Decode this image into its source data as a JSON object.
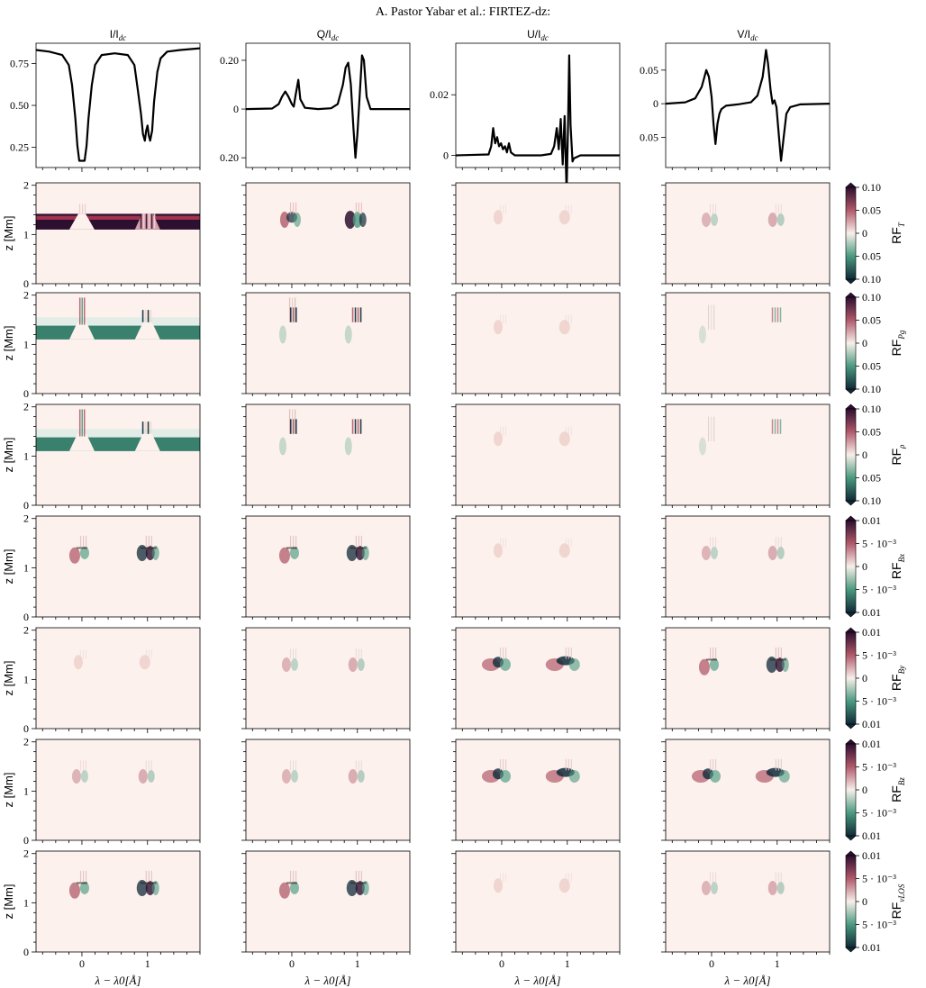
{
  "header": {
    "running_head": "A. Pastor Yabar  et al.: FIRTEZ-dz:"
  },
  "chart_data": {
    "type": "heatmap",
    "layout": {
      "rows": 8,
      "cols": 4
    },
    "columns": [
      {
        "title": "I/I",
        "title_sub": "dc"
      },
      {
        "title": "Q/I",
        "title_sub": "dc"
      },
      {
        "title": "U/I",
        "title_sub": "dc"
      },
      {
        "title": "V/I",
        "title_sub": "dc"
      }
    ],
    "xlabel": "λ − λ0[Å]",
    "xticks": [
      "0",
      "1"
    ],
    "xlim": [
      -0.7,
      1.8
    ],
    "ylabel": "z [Mm]",
    "yticks": [
      "0",
      "1",
      "2"
    ],
    "ylim": [
      0,
      2.05
    ],
    "profiles": [
      {
        "stokes": "I",
        "ylim": [
          0.13,
          0.87
        ],
        "yticks": [
          {
            "v": 0.25,
            "t": "0.25"
          },
          {
            "v": 0.5,
            "t": "0.50"
          },
          {
            "v": 0.75,
            "t": "0.75"
          }
        ],
        "x": [
          -0.7,
          -0.5,
          -0.3,
          -0.2,
          -0.15,
          -0.1,
          -0.07,
          -0.04,
          0,
          0.04,
          0.07,
          0.1,
          0.15,
          0.2,
          0.3,
          0.5,
          0.7,
          0.8,
          0.85,
          0.9,
          0.93,
          0.96,
          0.98,
          1.0,
          1.02,
          1.04,
          1.07,
          1.1,
          1.15,
          1.2,
          1.3,
          1.5,
          1.8
        ],
        "y": [
          0.83,
          0.82,
          0.8,
          0.74,
          0.62,
          0.42,
          0.26,
          0.17,
          0.17,
          0.17,
          0.26,
          0.42,
          0.62,
          0.74,
          0.8,
          0.81,
          0.8,
          0.74,
          0.6,
          0.45,
          0.33,
          0.29,
          0.35,
          0.38,
          0.32,
          0.29,
          0.35,
          0.52,
          0.7,
          0.78,
          0.82,
          0.83,
          0.84
        ]
      },
      {
        "stokes": "Q",
        "ylim": [
          -0.24,
          0.27
        ],
        "yticks": [
          {
            "v": -0.2,
            "t": "0.20"
          },
          {
            "v": 0,
            "t": "0"
          },
          {
            "v": 0.2,
            "t": "0.20"
          }
        ],
        "x": [
          -0.7,
          -0.3,
          -0.2,
          -0.15,
          -0.1,
          -0.05,
          0,
          0.03,
          0.06,
          0.1,
          0.13,
          0.2,
          0.4,
          0.6,
          0.7,
          0.78,
          0.82,
          0.86,
          0.9,
          0.94,
          0.97,
          1.0,
          1.04,
          1.07,
          1.1,
          1.14,
          1.2,
          1.3,
          1.8
        ],
        "y": [
          0,
          0.002,
          0.02,
          0.05,
          0.072,
          0.05,
          0.02,
          0.01,
          0.06,
          0.12,
          0.04,
          0.005,
          0,
          0.003,
          0.02,
          0.1,
          0.17,
          0.19,
          0.1,
          -0.08,
          -0.2,
          -0.1,
          0.08,
          0.22,
          0.2,
          0.05,
          0.0,
          0,
          0
        ]
      },
      {
        "stokes": "U",
        "ylim": [
          -0.004,
          0.037
        ],
        "yticks": [
          {
            "v": 0,
            "t": "0"
          },
          {
            "v": 0.02,
            "t": "0.02"
          }
        ],
        "x": [
          -0.7,
          -0.2,
          -0.16,
          -0.13,
          -0.1,
          -0.07,
          -0.04,
          -0.01,
          0.02,
          0.05,
          0.08,
          0.11,
          0.14,
          0.2,
          0.6,
          0.75,
          0.8,
          0.84,
          0.87,
          0.9,
          0.93,
          0.96,
          0.99,
          1.01,
          1.03,
          1.05,
          1.08,
          1.1,
          1.2,
          1.8
        ],
        "y": [
          0,
          0.0003,
          0.003,
          0.009,
          0.004,
          0.006,
          0.003,
          0.004,
          0.002,
          0.003,
          0.001,
          0.004,
          0.001,
          0,
          0,
          0.0005,
          0.003,
          0.009,
          0.002,
          0.012,
          -0.003,
          0.013,
          -0.012,
          0.008,
          0.033,
          0.01,
          -0.002,
          -0.001,
          0,
          0
        ]
      },
      {
        "stokes": "V",
        "ylim": [
          -0.095,
          0.09
        ],
        "yticks": [
          {
            "v": -0.05,
            "t": "0.05"
          },
          {
            "v": 0,
            "t": "0"
          },
          {
            "v": 0.05,
            "t": "0.05"
          }
        ],
        "x": [
          -0.7,
          -0.4,
          -0.25,
          -0.15,
          -0.08,
          -0.04,
          0,
          0.03,
          0.06,
          0.09,
          0.12,
          0.15,
          0.22,
          0.4,
          0.6,
          0.7,
          0.78,
          0.83,
          0.86,
          0.9,
          0.93,
          0.96,
          0.99,
          1.02,
          1.06,
          1.1,
          1.14,
          1.2,
          1.35,
          1.8
        ],
        "y": [
          0,
          0.002,
          0.008,
          0.025,
          0.05,
          0.04,
          0.01,
          -0.03,
          -0.06,
          -0.03,
          -0.015,
          -0.008,
          -0.003,
          -0.001,
          0.002,
          0.012,
          0.04,
          0.08,
          0.06,
          0.02,
          0.0,
          0.005,
          -0.005,
          -0.04,
          -0.085,
          -0.05,
          -0.015,
          -0.005,
          -0.001,
          0
        ]
      }
    ],
    "response_rows": [
      {
        "label": "RF",
        "label_sub": "T",
        "ticks": [
          "0.10",
          "0.05",
          "0",
          "0.05",
          "0.10"
        ],
        "patterns": [
          "band-I-T",
          "q-mod",
          "faint",
          "faint-mid"
        ]
      },
      {
        "label": "RF",
        "label_sub": "Pg",
        "ticks": [
          "0.10",
          "0.05",
          "0",
          "0.05",
          "0.10"
        ],
        "patterns": [
          "band-green",
          "upper-stripes",
          "faint",
          "upper-faint"
        ]
      },
      {
        "label": "RF",
        "label_sub": "ρ",
        "ticks": [
          "0.10",
          "0.05",
          "0",
          "0.05",
          "0.10"
        ],
        "patterns": [
          "band-green",
          "upper-stripes",
          "faint",
          "upper-faint"
        ]
      },
      {
        "label": "RF",
        "label_sub": "Bx",
        "ticks": [
          "0.01",
          "5 · 10⁻³",
          "0",
          "5 · 10⁻³",
          "0.01"
        ],
        "patterns": [
          "mid-strong",
          "mid-strong",
          "faint",
          "faint-mid"
        ]
      },
      {
        "label": "RF",
        "label_sub": "By",
        "ticks": [
          "0.01",
          "5 · 10⁻³",
          "0",
          "5 · 10⁻³",
          "0.01"
        ],
        "patterns": [
          "faint",
          "faint-mid",
          "wide-strong",
          "mid-strong"
        ]
      },
      {
        "label": "RF",
        "label_sub": "Bz",
        "ticks": [
          "0.01",
          "5 · 10⁻³",
          "0",
          "5 · 10⁻³",
          "0.01"
        ],
        "patterns": [
          "faint-mid",
          "faint-mid",
          "wide-strong",
          "wide-strong"
        ]
      },
      {
        "label": "RF",
        "label_sub": "vLOS",
        "ticks": [
          "0.01",
          "5 · 10⁻³",
          "0",
          "5 · 10⁻³",
          "0.01"
        ],
        "patterns": [
          "mid-strong",
          "mid-strong",
          "faint",
          "faint-mid"
        ]
      }
    ],
    "colormap": {
      "top": "#2d0f30",
      "upper": "#b25a6a",
      "mid": "#f8efea",
      "lower": "#4a9a80",
      "bottom": "#102a38"
    },
    "background_color": "#fcf1ed",
    "grid": false
  }
}
